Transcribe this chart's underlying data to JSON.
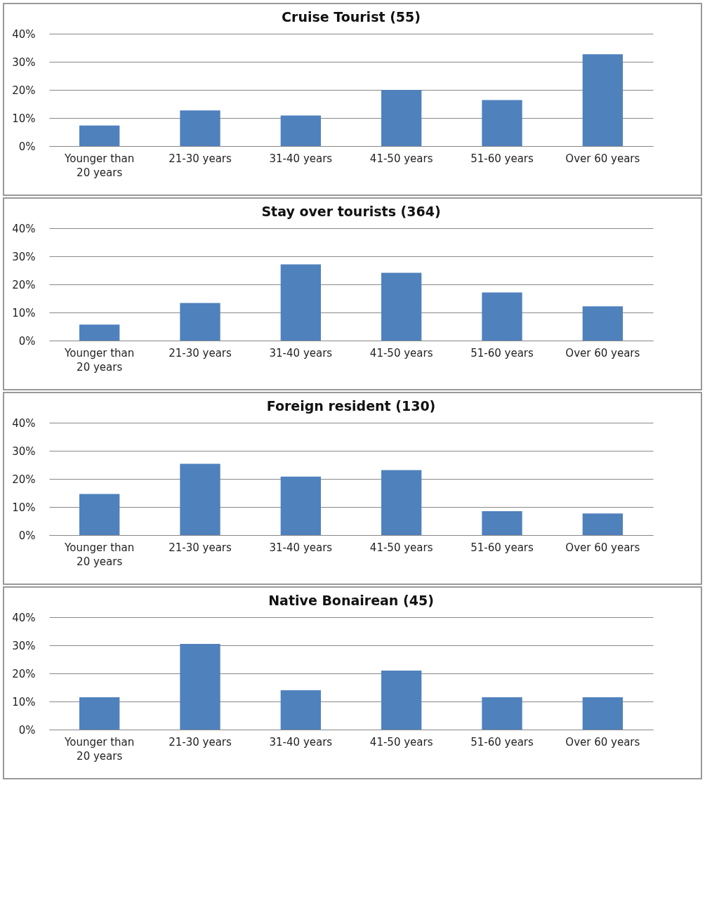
{
  "chart_data": [
    {
      "type": "bar",
      "title": "Cruise Tourist (55)",
      "categories": [
        "Younger than 20 years",
        "21-30 years",
        "31-40 years",
        "41-50 years",
        "51-60 years",
        "Over 60 years"
      ],
      "values": [
        7.3,
        12.7,
        10.9,
        20,
        16.4,
        32.7
      ],
      "color": "#4f81bd",
      "ylim": [
        0,
        40
      ],
      "yticks": [
        {
          "value": 0,
          "label": "0%"
        },
        {
          "value": 10,
          "label": "10%"
        },
        {
          "value": 20,
          "label": "20%"
        },
        {
          "value": 30,
          "label": "30%"
        },
        {
          "value": 40,
          "label": "40%"
        }
      ],
      "grid": "y"
    },
    {
      "type": "bar",
      "title": "Stay over tourists (364)",
      "categories": [
        "Younger than 20 years",
        "21-30 years",
        "31-40 years",
        "41-50 years",
        "51-60 years",
        "Over 60 years"
      ],
      "values": [
        5.7,
        13.4,
        27.1,
        24.1,
        17.1,
        12.2
      ],
      "color": "#4f81bd",
      "ylim": [
        0,
        40
      ],
      "yticks": [
        {
          "value": 0,
          "label": "0%"
        },
        {
          "value": 10,
          "label": "10%"
        },
        {
          "value": 20,
          "label": "20%"
        },
        {
          "value": 30,
          "label": "30%"
        },
        {
          "value": 40,
          "label": "40%"
        }
      ],
      "grid": "y"
    },
    {
      "type": "bar",
      "title": "Foreign resident (130)",
      "categories": [
        "Younger than 20 years",
        "21-30 years",
        "31-40 years",
        "41-50 years",
        "51-60 years",
        "Over 60 years"
      ],
      "values": [
        14.6,
        25.4,
        20.8,
        23.1,
        8.5,
        7.7
      ],
      "color": "#4f81bd",
      "ylim": [
        0,
        40
      ],
      "yticks": [
        {
          "value": 0,
          "label": "0%"
        },
        {
          "value": 10,
          "label": "10%"
        },
        {
          "value": 20,
          "label": "20%"
        },
        {
          "value": 30,
          "label": "30%"
        },
        {
          "value": 40,
          "label": "40%"
        }
      ],
      "grid": "y"
    },
    {
      "type": "bar",
      "title": "Native Bonairean (45)",
      "categories": [
        "Younger than 20 years",
        "21-30 years",
        "31-40 years",
        "41-50 years",
        "51-60 years",
        "Over 60 years"
      ],
      "values": [
        11.5,
        30.5,
        14,
        21,
        11.5,
        11.5
      ],
      "color": "#4f81bd",
      "ylim": [
        0,
        40
      ],
      "yticks": [
        {
          "value": 0,
          "label": "0%"
        },
        {
          "value": 10,
          "label": "10%"
        },
        {
          "value": 20,
          "label": "20%"
        },
        {
          "value": 30,
          "label": "30%"
        },
        {
          "value": 40,
          "label": "40%"
        }
      ],
      "grid": "y"
    }
  ]
}
